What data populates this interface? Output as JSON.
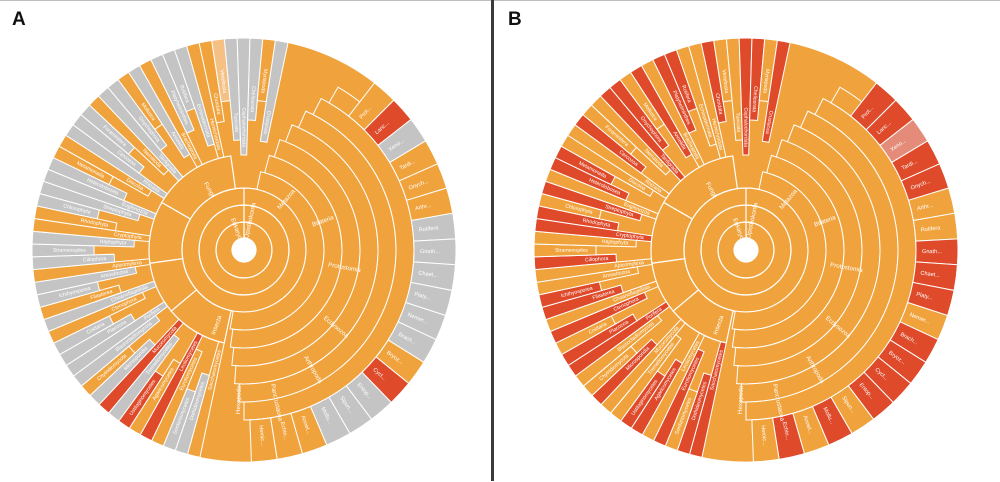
{
  "panels": [
    {
      "label": "A",
      "root_label": "Eukaryota",
      "inner_labels": [
        "Fungi",
        "Opisthokonta",
        "Metazoa",
        "Bilateria",
        "Protostomia",
        "Ecdysozoa",
        "Arthropoda",
        "Pancrustacea",
        "Hexapoda",
        "Insecta"
      ],
      "outer_labels": [
        "Saccharomycetes",
        "Dothideomycetes",
        "Sordariomycetes",
        "Eurotiomycetes",
        "Leotiomycetes",
        "Agaricomycetes",
        "Ustilaginomycetes",
        "Tremellomycetes",
        "Mucoromycota",
        "Microsporidia",
        "Chytridiomycota",
        "Blastocladiomycota",
        "Porifera",
        "Placozoa",
        "Cnidaria",
        "Ctenophora",
        "Choanoflagellata",
        "Filasterea",
        "Ichthyosporea",
        "Amoebozoa",
        "Apicomplexa",
        "Ciliophora",
        "Stramenopiles",
        "Haptophyta",
        "Cryptophyta",
        "Rhodophyta",
        "Chlorophyta",
        "Streptophyta",
        "Euglenozoa",
        "Heterolobosea",
        "Metamonada",
        "Discoba",
        "Rhizaria",
        "Cercozoa",
        "Foraminifera",
        "Nematoda",
        "Tardigrada",
        "Onychophora",
        "Mollusca",
        "Annelida",
        "Brachiopoda",
        "Platyhelminthes",
        "Rotifera",
        "Echinodermata",
        "Hemichordata",
        "Chordata",
        "Vertebrata",
        "Tunicata",
        "Cephalochordata",
        "Chelicerata",
        "Myriapoda",
        "Crustacea"
      ],
      "rim_labels": [
        "Prot...",
        "Lanc...",
        "Xeno...",
        "Tardi...",
        "Onych...",
        "Arthr...",
        "Rotifera",
        "Gnath...",
        "Chaet...",
        "Platy...",
        "Nemer...",
        "Brach...",
        "Bryoz...",
        "Cycl...",
        "Entop...",
        "Sipun...",
        "Mollu...",
        "Annel...",
        "Echin...",
        "Hemic..."
      ]
    },
    {
      "label": "B",
      "root_label": "Eukaryota",
      "inner_labels": [
        "Fungi",
        "Opisthokonta",
        "Metazoa",
        "Bilateria",
        "Protostomia",
        "Ecdysozoa",
        "Arthropoda",
        "Pancrustacea",
        "Hexapoda",
        "Insecta"
      ],
      "outer_labels": [
        "Saccharomycetes",
        "Dothideomycetes",
        "Sordariomycetes",
        "Eurotiomycetes",
        "Leotiomycetes",
        "Agaricomycetes",
        "Ustilaginomycetes",
        "Tremellomycetes",
        "Mucoromycota",
        "Microsporidia",
        "Chytridiomycota",
        "Blastocladiomycota",
        "Porifera",
        "Placozoa",
        "Cnidaria",
        "Ctenophora",
        "Choanoflagellata",
        "Filasterea",
        "Ichthyosporea",
        "Amoebozoa",
        "Apicomplexa",
        "Ciliophora",
        "Stramenopiles",
        "Haptophyta",
        "Cryptophyta",
        "Rhodophyta",
        "Chlorophyta",
        "Streptophyta",
        "Euglenozoa",
        "Heterolobosea",
        "Metamonada",
        "Discoba",
        "Rhizaria",
        "Cercozoa",
        "Foraminifera",
        "Nematoda",
        "Tardigrada",
        "Onychophora",
        "Mollusca",
        "Annelida",
        "Brachiopoda",
        "Platyhelminthes",
        "Rotifera",
        "Echinodermata",
        "Hemichordata",
        "Chordata",
        "Vertebrata",
        "Tunicata",
        "Cephalochordata",
        "Chelicerata",
        "Myriapoda",
        "Crustacea"
      ],
      "rim_labels": [
        "Prot...",
        "Lanc...",
        "Xeno...",
        "Tardi...",
        "Onych...",
        "Arthr...",
        "Rotifera",
        "Gnath...",
        "Chaet...",
        "Platy...",
        "Nemer...",
        "Brach...",
        "Bryoz...",
        "Cycl...",
        "Entop...",
        "Sipun...",
        "Mollu...",
        "Annel...",
        "Echin...",
        "Hemic..."
      ]
    }
  ],
  "colors": {
    "orange": "#f0a33c",
    "red": "#de4a2a",
    "gray": "#c4c4c4",
    "light_orange": "#f5c084",
    "separator": "#ffffff",
    "divider": "#3a3a3a"
  }
}
